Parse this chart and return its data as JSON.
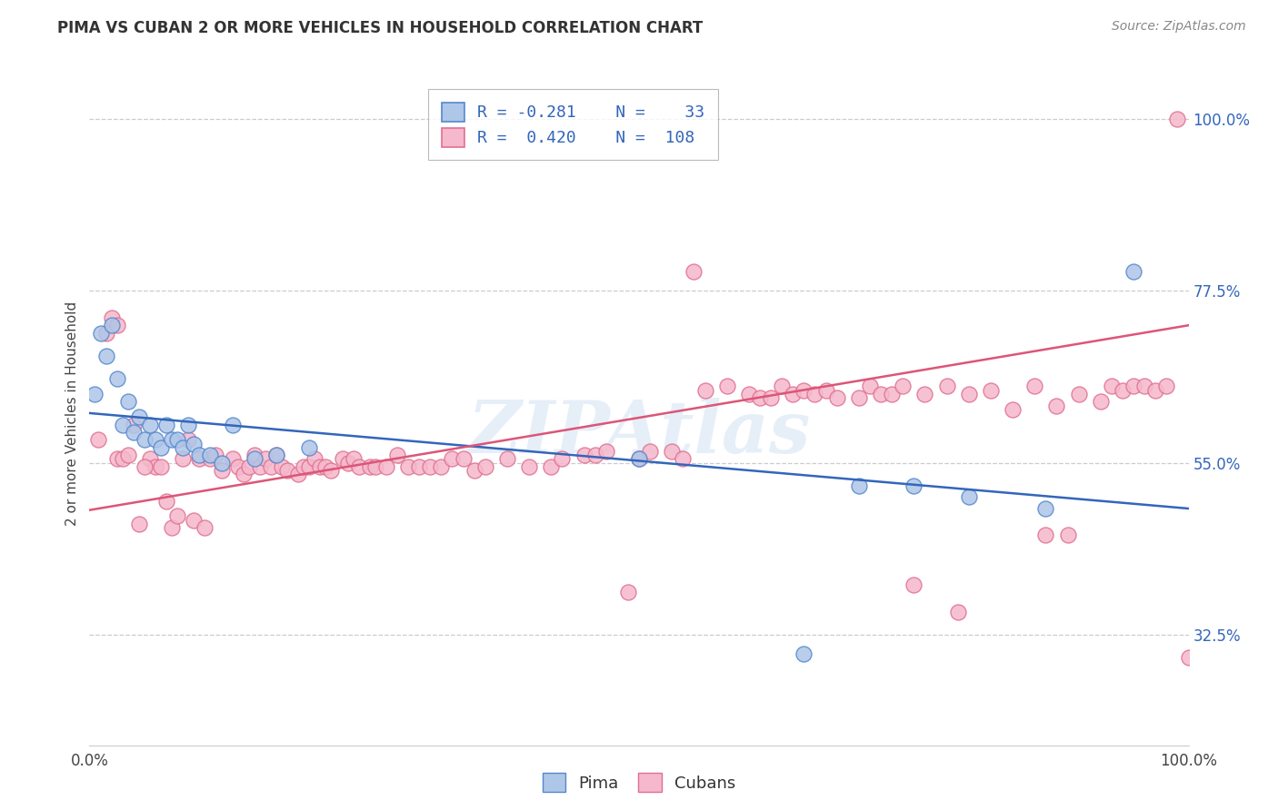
{
  "title": "PIMA VS CUBAN 2 OR MORE VEHICLES IN HOUSEHOLD CORRELATION CHART",
  "source": "Source: ZipAtlas.com",
  "ylabel": "2 or more Vehicles in Household",
  "xlim": [
    0.0,
    1.0
  ],
  "ylim": [
    0.18,
    1.05
  ],
  "x_tick_labels": [
    "0.0%",
    "100.0%"
  ],
  "y_tick_labels_right": [
    "100.0%",
    "77.5%",
    "55.0%",
    "32.5%"
  ],
  "y_tick_values_right": [
    1.0,
    0.775,
    0.55,
    0.325
  ],
  "pima_color": "#aec6e8",
  "pima_edge_color": "#5588cc",
  "cuban_color": "#f5b8cc",
  "cuban_edge_color": "#e07090",
  "pima_line_color": "#3366bb",
  "cuban_line_color": "#dd5577",
  "legend_text_color": "#3366bb",
  "pima_R": -0.281,
  "pima_N": 33,
  "cuban_R": 0.42,
  "cuban_N": 108,
  "background_color": "#ffffff",
  "grid_color": "#cccccc",
  "pima_x": [
    0.005,
    0.01,
    0.015,
    0.02,
    0.025,
    0.03,
    0.035,
    0.04,
    0.045,
    0.05,
    0.055,
    0.06,
    0.065,
    0.07,
    0.075,
    0.08,
    0.085,
    0.09,
    0.095,
    0.1,
    0.11,
    0.12,
    0.13,
    0.15,
    0.17,
    0.2,
    0.5,
    0.65,
    0.7,
    0.75,
    0.8,
    0.87,
    0.95
  ],
  "pima_y": [
    0.64,
    0.72,
    0.69,
    0.73,
    0.66,
    0.6,
    0.63,
    0.59,
    0.61,
    0.58,
    0.6,
    0.58,
    0.57,
    0.6,
    0.58,
    0.58,
    0.57,
    0.6,
    0.575,
    0.56,
    0.56,
    0.55,
    0.6,
    0.555,
    0.56,
    0.57,
    0.555,
    0.3,
    0.52,
    0.52,
    0.505,
    0.49,
    0.8
  ],
  "cuban_x": [
    0.008,
    0.015,
    0.02,
    0.025,
    0.03,
    0.04,
    0.045,
    0.055,
    0.06,
    0.065,
    0.07,
    0.075,
    0.08,
    0.085,
    0.09,
    0.1,
    0.11,
    0.115,
    0.12,
    0.13,
    0.135,
    0.14,
    0.145,
    0.15,
    0.155,
    0.16,
    0.165,
    0.17,
    0.175,
    0.18,
    0.19,
    0.195,
    0.2,
    0.205,
    0.21,
    0.215,
    0.22,
    0.23,
    0.235,
    0.24,
    0.245,
    0.255,
    0.26,
    0.27,
    0.28,
    0.29,
    0.3,
    0.31,
    0.32,
    0.33,
    0.34,
    0.35,
    0.36,
    0.38,
    0.4,
    0.42,
    0.43,
    0.45,
    0.46,
    0.47,
    0.49,
    0.5,
    0.51,
    0.53,
    0.54,
    0.55,
    0.56,
    0.58,
    0.6,
    0.61,
    0.62,
    0.63,
    0.64,
    0.65,
    0.66,
    0.67,
    0.68,
    0.7,
    0.71,
    0.72,
    0.73,
    0.74,
    0.75,
    0.76,
    0.78,
    0.79,
    0.8,
    0.82,
    0.84,
    0.86,
    0.87,
    0.88,
    0.89,
    0.9,
    0.92,
    0.93,
    0.94,
    0.95,
    0.96,
    0.97,
    0.98,
    0.99,
    1.0,
    0.025,
    0.035,
    0.05,
    0.095,
    0.105
  ],
  "cuban_y": [
    0.58,
    0.72,
    0.74,
    0.555,
    0.555,
    0.6,
    0.47,
    0.555,
    0.545,
    0.545,
    0.5,
    0.465,
    0.48,
    0.555,
    0.58,
    0.555,
    0.555,
    0.56,
    0.54,
    0.555,
    0.545,
    0.535,
    0.545,
    0.56,
    0.545,
    0.555,
    0.545,
    0.56,
    0.545,
    0.54,
    0.535,
    0.545,
    0.545,
    0.555,
    0.545,
    0.545,
    0.54,
    0.555,
    0.55,
    0.555,
    0.545,
    0.545,
    0.545,
    0.545,
    0.56,
    0.545,
    0.545,
    0.545,
    0.545,
    0.555,
    0.555,
    0.54,
    0.545,
    0.555,
    0.545,
    0.545,
    0.555,
    0.56,
    0.56,
    0.565,
    0.38,
    0.555,
    0.565,
    0.565,
    0.555,
    0.8,
    0.645,
    0.65,
    0.64,
    0.635,
    0.635,
    0.65,
    0.64,
    0.645,
    0.64,
    0.645,
    0.635,
    0.635,
    0.65,
    0.64,
    0.64,
    0.65,
    0.39,
    0.64,
    0.65,
    0.355,
    0.64,
    0.645,
    0.62,
    0.65,
    0.455,
    0.625,
    0.455,
    0.64,
    0.63,
    0.65,
    0.645,
    0.65,
    0.65,
    0.645,
    0.65,
    1.0,
    0.295,
    0.73,
    0.56,
    0.545,
    0.475,
    0.465
  ]
}
